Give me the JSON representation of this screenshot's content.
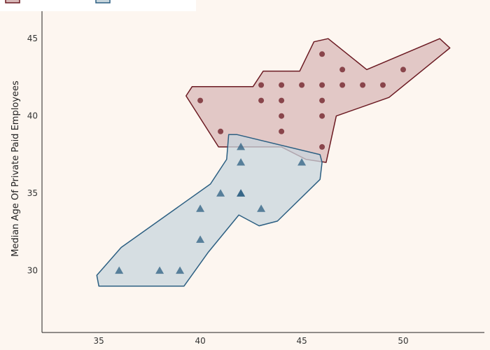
{
  "chart_data": {
    "type": "scatter",
    "xlabel": "",
    "ylabel": "Median Age Of Private Paid Employees",
    "xlim": [
      32.2,
      54.0
    ],
    "ylim": [
      26.0,
      47.5
    ],
    "x_ticks": [
      "35",
      "40",
      "45",
      "50"
    ],
    "y_ticks": [
      "30",
      "35",
      "40",
      "45"
    ],
    "grid": false,
    "legend_position": "top-left",
    "series": [
      {
        "marker": "circle",
        "color": "#6b1a22",
        "hull_fill": "#d8b8b8",
        "hull_stroke": "#6b1a22",
        "points": [
          [
            40,
            41
          ],
          [
            41,
            39
          ],
          [
            43,
            42
          ],
          [
            43,
            41
          ],
          [
            44,
            42
          ],
          [
            44,
            41
          ],
          [
            44,
            40
          ],
          [
            44,
            39
          ],
          [
            45,
            42
          ],
          [
            46,
            44
          ],
          [
            46,
            42
          ],
          [
            46,
            41
          ],
          [
            46,
            40
          ],
          [
            46,
            38
          ],
          [
            47,
            43
          ],
          [
            47,
            42
          ],
          [
            48,
            42
          ],
          [
            49,
            42
          ],
          [
            50,
            43
          ]
        ],
        "hull": [
          [
            40.9,
            38.0
          ],
          [
            42.0,
            38.0
          ],
          [
            44.0,
            38.0
          ],
          [
            45.2,
            37.2
          ],
          [
            46.2,
            37.0
          ],
          [
            46.7,
            40.0
          ],
          [
            49.3,
            41.2
          ],
          [
            52.3,
            44.4
          ],
          [
            51.8,
            45.0
          ],
          [
            48.2,
            43.0
          ],
          [
            46.3,
            45.0
          ],
          [
            45.6,
            44.8
          ],
          [
            44.9,
            42.9
          ],
          [
            43.1,
            42.9
          ],
          [
            42.6,
            41.9
          ],
          [
            39.6,
            41.9
          ],
          [
            39.3,
            41.3
          ]
        ]
      },
      {
        "marker": "triangle",
        "color": "#2c5f82",
        "hull_fill": "#c8d6dd",
        "hull_stroke": "#2c5f82",
        "points": [
          [
            36,
            30
          ],
          [
            38,
            30
          ],
          [
            39,
            30
          ],
          [
            40,
            34
          ],
          [
            40,
            32
          ],
          [
            41,
            35
          ],
          [
            42,
            38
          ],
          [
            42,
            37
          ],
          [
            42,
            35
          ],
          [
            42,
            35
          ],
          [
            43,
            34
          ],
          [
            45,
            37
          ]
        ],
        "hull": [
          [
            35.0,
            29.0
          ],
          [
            39.2,
            29.0
          ],
          [
            40.4,
            31.2
          ],
          [
            41.9,
            33.6
          ],
          [
            42.9,
            32.9
          ],
          [
            43.8,
            33.2
          ],
          [
            45.9,
            35.9
          ],
          [
            46.0,
            37.0
          ],
          [
            45.9,
            37.5
          ],
          [
            41.8,
            38.8
          ],
          [
            41.4,
            38.8
          ],
          [
            41.3,
            37.2
          ],
          [
            40.5,
            35.6
          ],
          [
            36.1,
            31.5
          ],
          [
            34.9,
            29.7
          ]
        ]
      }
    ]
  }
}
